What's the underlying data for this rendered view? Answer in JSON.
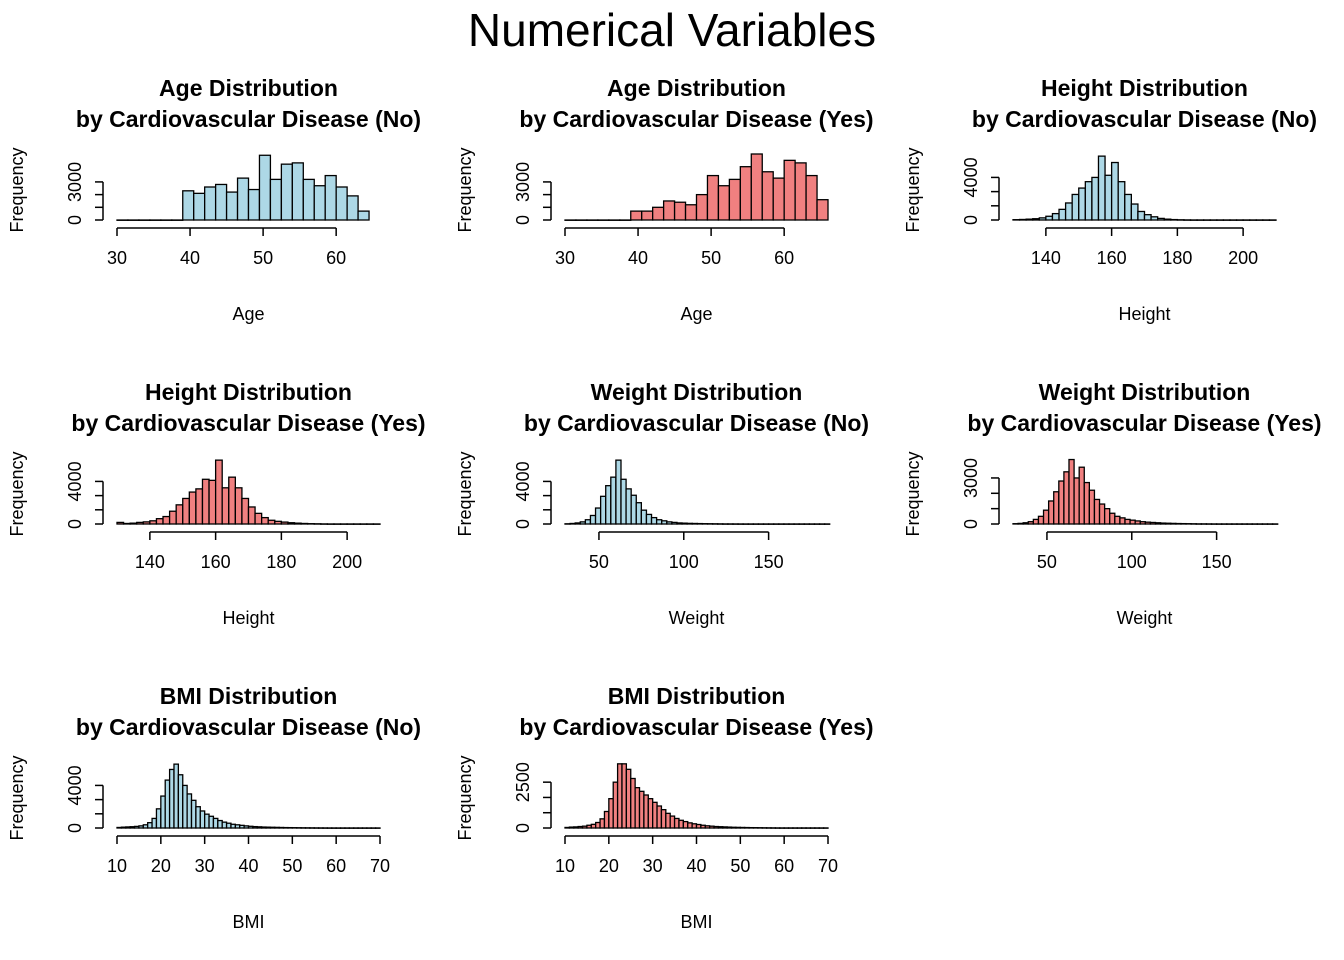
{
  "figure": {
    "title": "Numerical Variables"
  },
  "colors": {
    "no": "#add8e6",
    "yes": "#f08080",
    "outline": "#000000"
  },
  "chart_data": [
    {
      "type": "bar",
      "group": "No",
      "title_line1": "Age Distribution",
      "title_line2": "by Cardiovascular Disease (No)",
      "xlabel": "Age",
      "ylabel": "Frequency",
      "xlim": [
        30,
        66
      ],
      "ylim": [
        0,
        5200
      ],
      "xticks": [
        30,
        40,
        50,
        60
      ],
      "yticks": [
        0,
        3000
      ],
      "bin_start": 30,
      "bin_width": 1.5,
      "values": [
        0,
        0,
        0,
        0,
        0,
        0,
        2300,
        2100,
        2600,
        2800,
        2200,
        3300,
        2400,
        5100,
        3200,
        4400,
        4500,
        3200,
        2700,
        3500,
        2600,
        1900,
        700
      ]
    },
    {
      "type": "bar",
      "group": "Yes",
      "title_line1": "Age Distribution",
      "title_line2": "by Cardiovascular Disease (Yes)",
      "xlabel": "Age",
      "ylabel": "Frequency",
      "xlim": [
        30,
        66
      ],
      "ylim": [
        0,
        5200
      ],
      "xticks": [
        30,
        40,
        50,
        60
      ],
      "yticks": [
        0,
        3000
      ],
      "bin_start": 30,
      "bin_width": 1.5,
      "values": [
        0,
        0,
        0,
        0,
        0,
        0,
        700,
        700,
        1000,
        1500,
        1400,
        1200,
        2000,
        3500,
        2700,
        3200,
        4200,
        5200,
        3800,
        3300,
        4700,
        4500,
        3500,
        1600
      ]
    },
    {
      "type": "bar",
      "group": "No",
      "title_line1": "Height Distribution",
      "title_line2": "by Cardiovascular Disease (No)",
      "xlabel": "Height",
      "ylabel": "Frequency",
      "xlim": [
        130,
        210
      ],
      "ylim": [
        0,
        6200
      ],
      "xticks": [
        140,
        160,
        180,
        200
      ],
      "yticks": [
        0,
        4000
      ],
      "bin_start": 130,
      "bin_width": 2,
      "values": [
        30,
        50,
        80,
        120,
        200,
        350,
        600,
        1000,
        1600,
        2400,
        3000,
        3600,
        4000,
        6000,
        4200,
        5400,
        3600,
        2400,
        1500,
        800,
        500,
        300,
        150,
        80,
        40,
        20,
        10,
        5,
        5,
        5,
        5,
        5,
        5,
        5,
        5,
        5,
        5,
        5,
        5,
        5
      ]
    },
    {
      "type": "bar",
      "group": "Yes",
      "title_line1": "Height Distribution",
      "title_line2": "by Cardiovascular Disease (Yes)",
      "xlabel": "Height",
      "ylabel": "Frequency",
      "xlim": [
        130,
        210
      ],
      "ylim": [
        0,
        6200
      ],
      "xticks": [
        140,
        160,
        180,
        200
      ],
      "yticks": [
        0,
        4000
      ],
      "bin_start": 130,
      "bin_width": 2,
      "values": [
        150,
        50,
        80,
        150,
        200,
        300,
        500,
        700,
        1200,
        1800,
        2400,
        3000,
        3300,
        4200,
        4100,
        6000,
        3400,
        4400,
        3400,
        2400,
        1600,
        1000,
        600,
        350,
        250,
        180,
        120,
        80,
        50,
        30,
        20,
        10,
        5,
        5,
        5,
        5,
        5,
        5,
        5,
        5
      ]
    },
    {
      "type": "bar",
      "group": "No",
      "title_line1": "Weight Distribution",
      "title_line2": "by Cardiovascular Disease (No)",
      "xlabel": "Weight",
      "ylabel": "Frequency",
      "xlim": [
        30,
        185
      ],
      "ylim": [
        0,
        6200
      ],
      "xticks": [
        50,
        100,
        150
      ],
      "yticks": [
        0,
        4000
      ],
      "bin_start": 30,
      "bin_width": 3,
      "values": [
        20,
        50,
        100,
        200,
        400,
        800,
        1500,
        2600,
        3600,
        4400,
        6000,
        4200,
        3300,
        2700,
        2000,
        1300,
        900,
        600,
        400,
        300,
        200,
        150,
        100,
        80,
        60,
        50,
        40,
        30,
        25,
        20,
        15,
        10,
        10,
        8,
        6,
        5,
        5,
        5,
        5,
        5,
        5,
        5,
        5,
        5,
        5,
        5,
        5,
        5,
        5,
        5,
        5,
        5
      ]
    },
    {
      "type": "bar",
      "group": "Yes",
      "title_line1": "Weight Distribution",
      "title_line2": "by Cardiovascular Disease (Yes)",
      "xlabel": "Weight",
      "ylabel": "Frequency",
      "xlim": [
        30,
        185
      ],
      "ylim": [
        0,
        4300
      ],
      "xticks": [
        50,
        100,
        150
      ],
      "yticks": [
        0,
        3000
      ],
      "bin_start": 30,
      "bin_width": 3,
      "values": [
        20,
        40,
        80,
        150,
        300,
        500,
        900,
        1500,
        2100,
        2800,
        3400,
        4200,
        3000,
        3700,
        2700,
        2200,
        1600,
        1300,
        1000,
        700,
        500,
        400,
        300,
        250,
        200,
        150,
        120,
        100,
        80,
        60,
        50,
        40,
        30,
        25,
        20,
        15,
        10,
        10,
        8,
        6,
        5,
        5,
        5,
        5,
        5,
        5,
        5,
        5,
        5,
        5,
        5,
        5
      ]
    },
    {
      "type": "bar",
      "group": "No",
      "title_line1": "BMI Distribution",
      "title_line2": "by Cardiovascular Disease (No)",
      "xlabel": "BMI",
      "ylabel": "Frequency",
      "xlim": [
        10,
        70
      ],
      "ylim": [
        0,
        6200
      ],
      "xticks": [
        10,
        20,
        30,
        40,
        50,
        60,
        70
      ],
      "yticks": [
        0,
        4000
      ],
      "bin_start": 10,
      "bin_width": 1,
      "values": [
        50,
        80,
        100,
        120,
        150,
        200,
        300,
        500,
        900,
        1800,
        3000,
        4500,
        5500,
        6000,
        5000,
        4000,
        3200,
        2600,
        2000,
        1600,
        1300,
        1100,
        900,
        700,
        550,
        450,
        350,
        300,
        250,
        200,
        160,
        130,
        110,
        90,
        80,
        70,
        60,
        50,
        40,
        35,
        30,
        25,
        20,
        18,
        15,
        12,
        10,
        8,
        6,
        5,
        5,
        5,
        5,
        5,
        5,
        5,
        5,
        5,
        5,
        5
      ]
    },
    {
      "type": "bar",
      "group": "Yes",
      "title_line1": "BMI Distribution",
      "title_line2": "by Cardiovascular Disease (Yes)",
      "xlabel": "BMI",
      "ylabel": "Frequency",
      "xlim": [
        10,
        70
      ],
      "ylim": [
        0,
        3600
      ],
      "xticks": [
        10,
        20,
        30,
        40,
        50,
        60,
        70
      ],
      "yticks": [
        0,
        2500
      ],
      "bin_start": 10,
      "bin_width": 1,
      "values": [
        30,
        50,
        60,
        80,
        100,
        150,
        200,
        300,
        500,
        900,
        1600,
        2500,
        3500,
        3500,
        3200,
        2700,
        2200,
        2000,
        1800,
        1600,
        1400,
        1200,
        1000,
        800,
        650,
        520,
        420,
        350,
        280,
        230,
        190,
        150,
        120,
        100,
        80,
        70,
        60,
        50,
        40,
        35,
        30,
        25,
        20,
        18,
        15,
        12,
        10,
        8,
        6,
        5,
        5,
        5,
        5,
        5,
        5,
        5,
        5,
        5,
        5,
        5
      ]
    }
  ]
}
